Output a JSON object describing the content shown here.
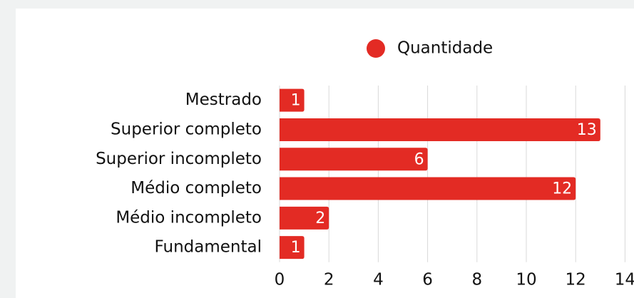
{
  "chart_data": {
    "type": "barh",
    "categories": [
      "Mestrado",
      "Superior completo",
      "Superior incompleto",
      "Médio completo",
      "Médio incompleto",
      "Fundamental"
    ],
    "series": [
      {
        "name": "Quantidade",
        "color": "#e32b24",
        "values": [
          1,
          13,
          6,
          12,
          2,
          1
        ]
      }
    ],
    "xlim": [
      0,
      14
    ],
    "xticks": [
      0,
      2,
      4,
      6,
      8,
      10,
      12,
      14
    ],
    "grid": true,
    "legend": "top"
  }
}
